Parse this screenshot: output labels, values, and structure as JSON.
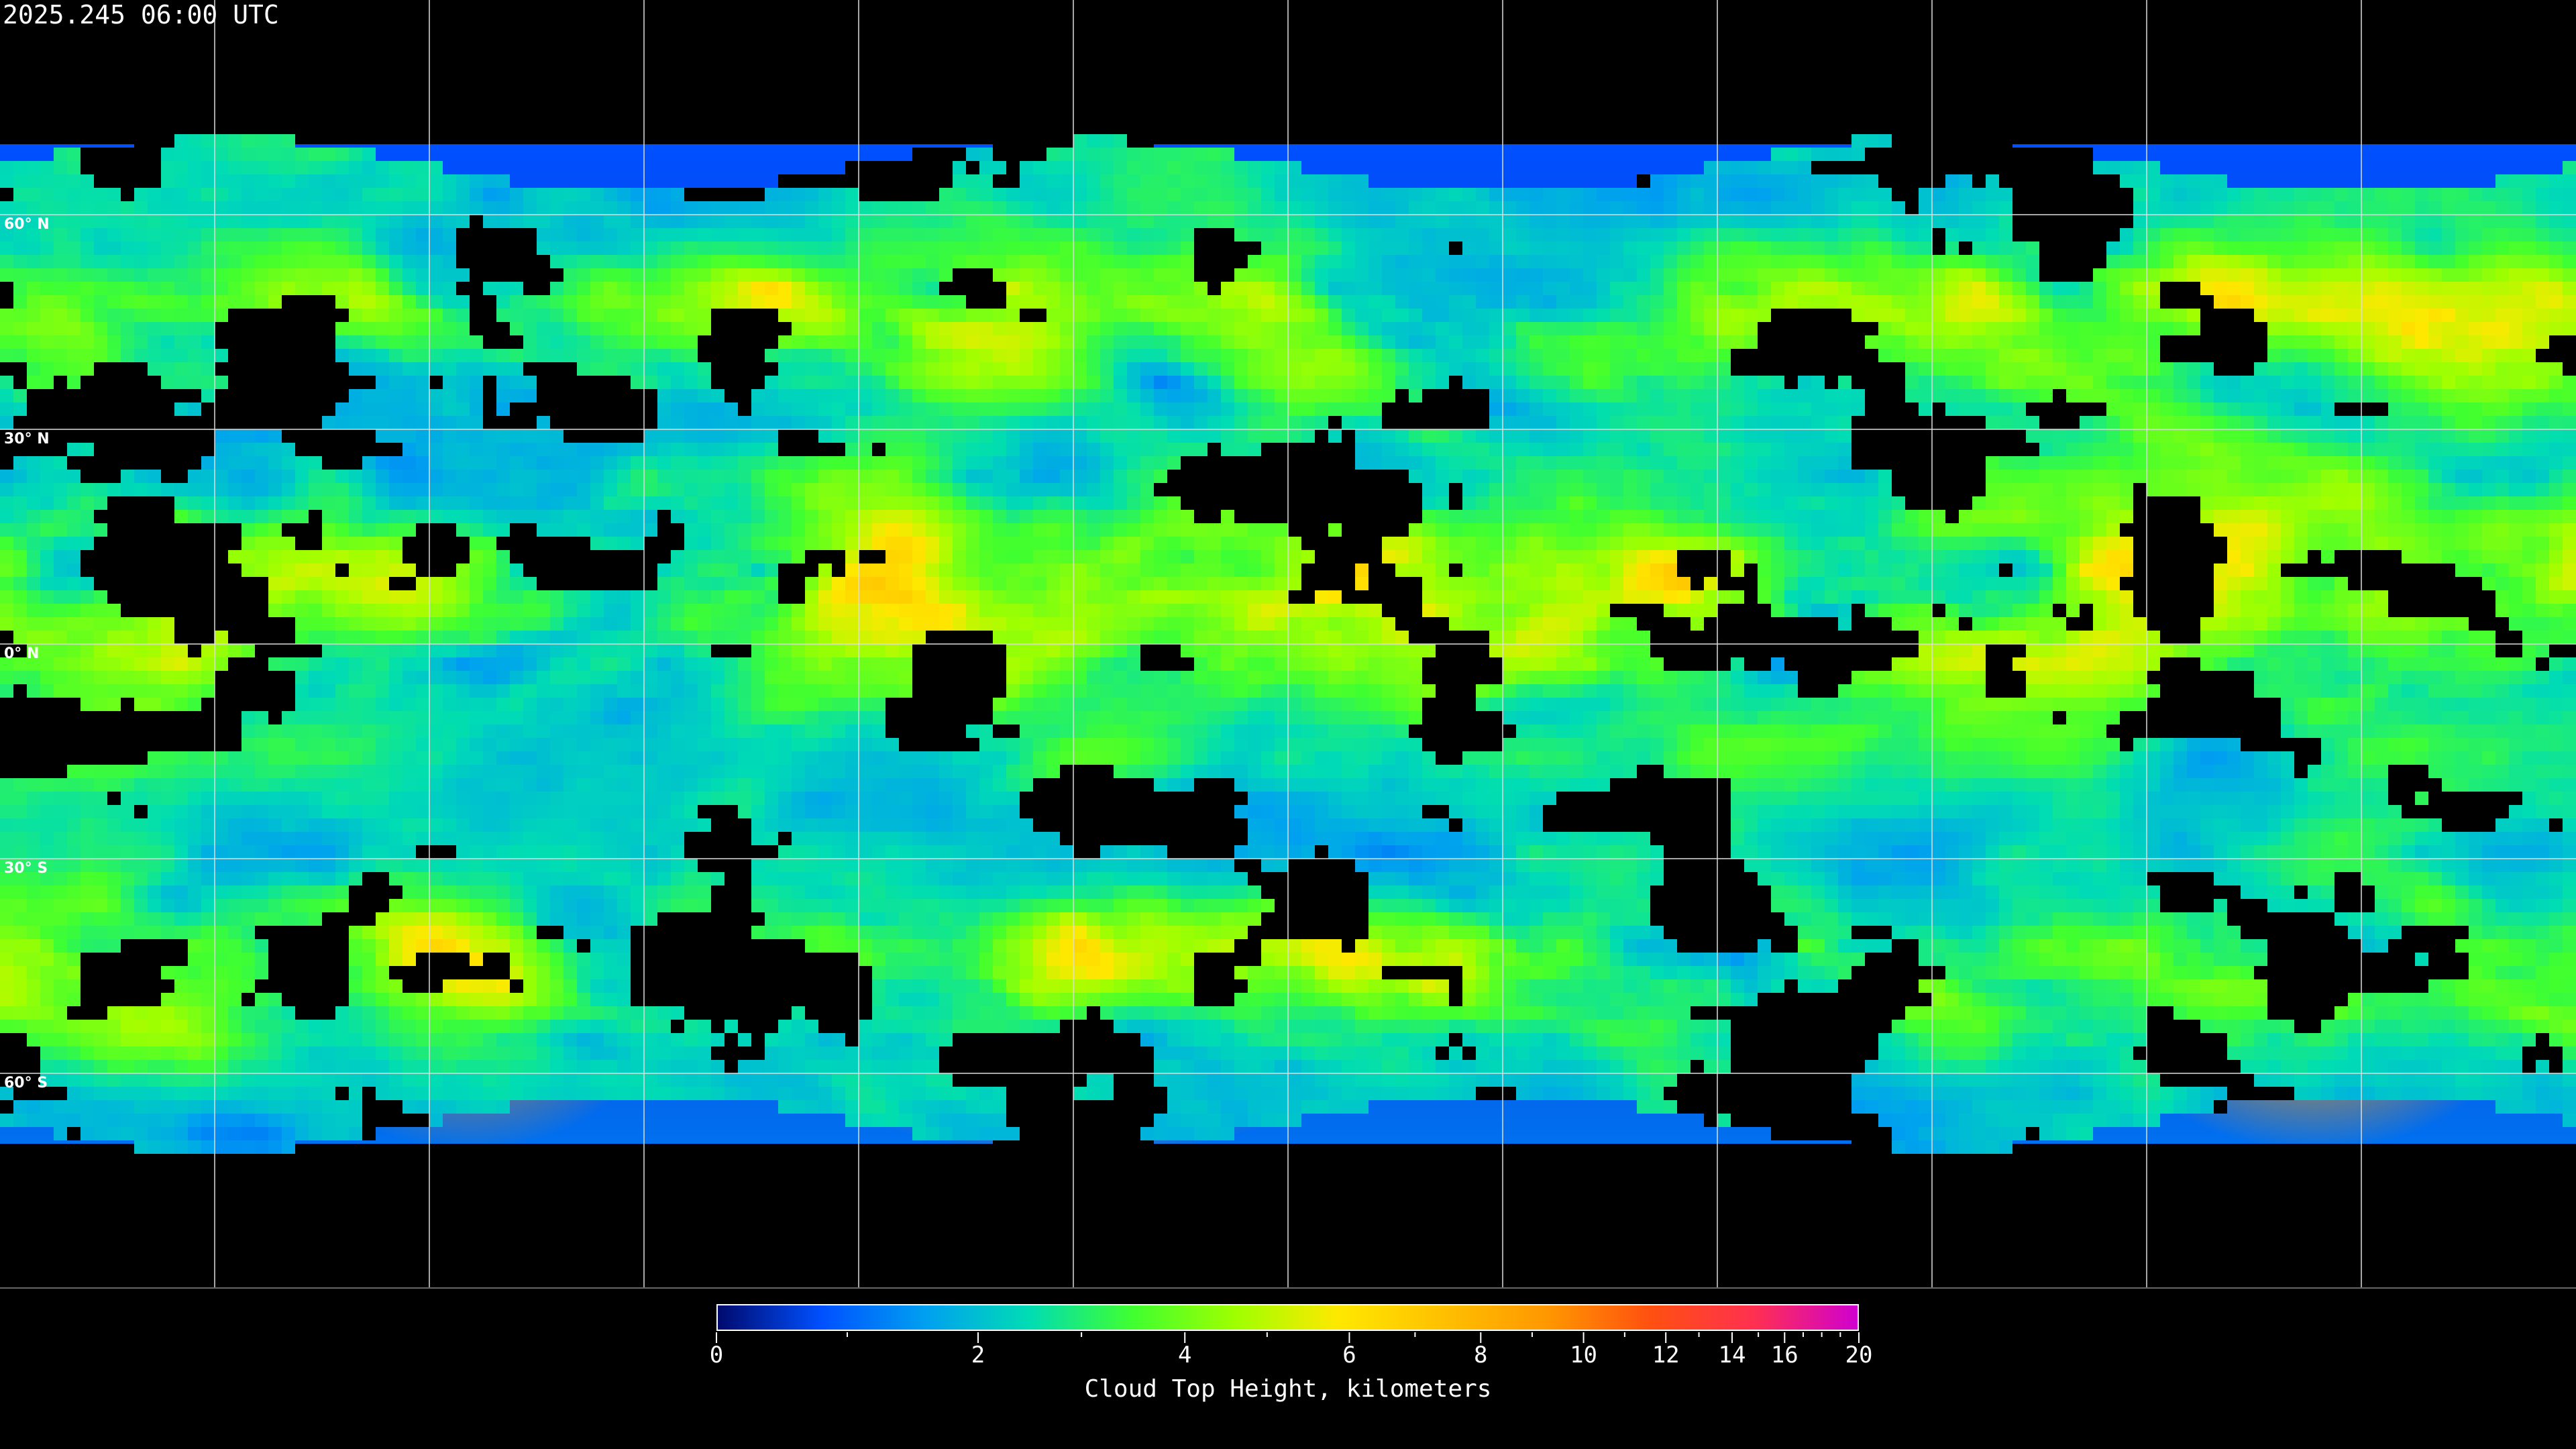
{
  "header": {
    "timestamp": "2025.245 06:00 UTC"
  },
  "map": {
    "projection": "equirectangular",
    "lat_labels": [
      "60° N",
      "30° N",
      "0° N",
      "30° S",
      "60° S"
    ],
    "lat_values": [
      60,
      30,
      0,
      -30,
      -60
    ],
    "lon_grid_spacing_deg": 30,
    "grid_color": "#ffffff",
    "coastline_color": "#ffffff",
    "no_data_color": "#000000"
  },
  "colorbar": {
    "title": "Cloud Top Height, kilometers",
    "range": [
      0,
      20
    ],
    "tick_labels": [
      "0",
      "2",
      "4",
      "6",
      "8",
      "10",
      "12",
      "14",
      "16",
      "20"
    ],
    "tick_values": [
      0,
      2,
      4,
      6,
      8,
      10,
      12,
      14,
      16,
      20
    ],
    "minor_ticks": [
      1,
      3,
      5,
      7,
      9,
      11,
      13,
      15,
      17,
      18,
      19
    ],
    "colors": [
      "#000a6e",
      "#0050ff",
      "#00a0f0",
      "#00dcb4",
      "#40ff30",
      "#a0ff00",
      "#ffe800",
      "#ffc000",
      "#ff9800",
      "#ff5010",
      "#ff3050",
      "#d000d0"
    ]
  }
}
